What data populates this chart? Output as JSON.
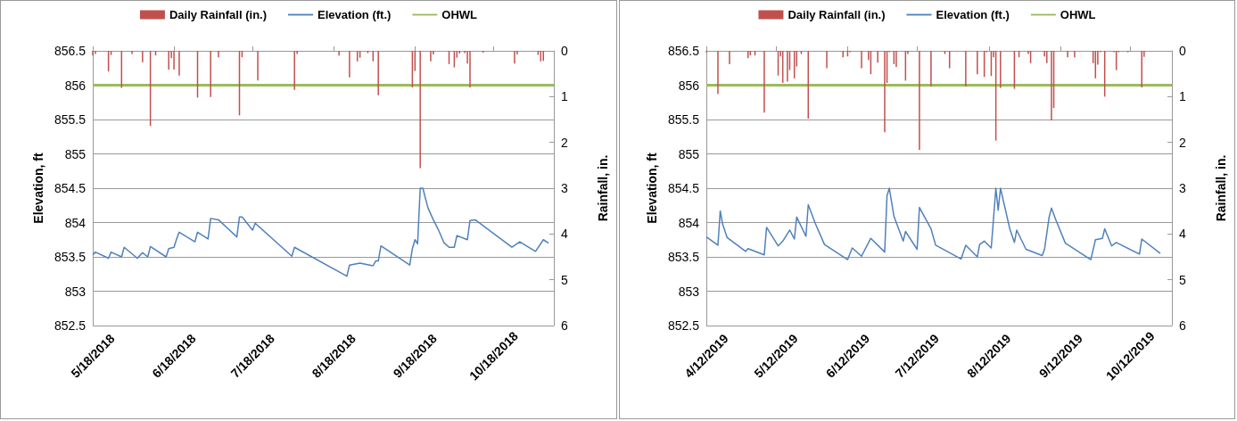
{
  "chart_data": [
    {
      "type": "line",
      "xlabel": null,
      "ylabel": "Elevation, ft",
      "y2label": "Rainfall, in.",
      "legend": "top",
      "grid": "y",
      "marker": "none",
      "xlim": [
        "2018-05-18",
        "2018-11-10"
      ],
      "xticks": [
        {
          "value": "2018-05-18",
          "label": "5/18/2018"
        },
        {
          "value": "2018-06-18",
          "label": "6/18/2018"
        },
        {
          "value": "2018-07-18",
          "label": "7/18/2018"
        },
        {
          "value": "2018-08-18",
          "label": "8/18/2018"
        },
        {
          "value": "2018-09-18",
          "label": "9/18/2018"
        },
        {
          "value": "2018-10-18",
          "label": "10/18/2018"
        }
      ],
      "ylim": [
        852.5,
        856.5
      ],
      "yticks": [
        852.5,
        853,
        853.5,
        854,
        854.5,
        855,
        855.5,
        856,
        856.5
      ],
      "y2lim": [
        6,
        0
      ],
      "y2ticks": [
        0,
        1,
        2,
        3,
        4,
        5,
        6
      ],
      "series": [
        {
          "name": "Daily Rainfall (in.)",
          "type": "bar",
          "axis": "y2",
          "color": "#c0504d",
          "x": [
            "2018-05-18",
            "2018-05-19",
            "2018-05-24",
            "2018-05-25",
            "2018-05-29",
            "2018-06-02",
            "2018-06-06",
            "2018-06-09",
            "2018-06-11",
            "2018-06-16",
            "2018-06-17",
            "2018-06-18",
            "2018-06-20",
            "2018-06-27",
            "2018-07-02",
            "2018-07-05",
            "2018-07-13",
            "2018-07-14",
            "2018-07-20",
            "2018-08-03",
            "2018-08-04",
            "2018-08-20",
            "2018-08-24",
            "2018-08-27",
            "2018-08-28",
            "2018-08-31",
            "2018-09-02",
            "2018-09-04",
            "2018-09-17",
            "2018-09-18",
            "2018-09-20",
            "2018-09-24",
            "2018-09-25",
            "2018-10-01",
            "2018-10-03",
            "2018-10-04",
            "2018-10-05",
            "2018-10-07",
            "2018-10-08",
            "2018-10-09",
            "2018-10-14",
            "2018-10-26",
            "2018-10-27",
            "2018-11-04",
            "2018-11-05",
            "2018-11-06"
          ],
          "values": [
            0.1,
            0.07,
            0.45,
            0.09,
            0.81,
            0.07,
            0.25,
            1.64,
            0.1,
            0.41,
            0.16,
            0.41,
            0.54,
            1.02,
            1.01,
            0.14,
            1.41,
            0.14,
            0.65,
            0.85,
            0.07,
            0.1,
            0.58,
            0.23,
            0.15,
            0.05,
            0.23,
            0.97,
            0.8,
            0.44,
            2.56,
            0.23,
            0.08,
            0.29,
            0.36,
            0.15,
            0.06,
            0.05,
            0.28,
            0.8,
            0.04,
            0.28,
            0.08,
            0.09,
            0.23,
            0.22
          ]
        },
        {
          "name": "Elevation (ft.)",
          "color": "#4f81bd",
          "x": [
            "2018-05-18",
            "2018-05-19",
            "2018-05-24",
            "2018-05-25",
            "2018-05-29",
            "2018-05-30",
            "2018-06-04",
            "2018-06-06",
            "2018-06-08",
            "2018-06-09",
            "2018-06-15",
            "2018-06-16",
            "2018-06-18",
            "2018-06-19",
            "2018-06-20",
            "2018-06-26",
            "2018-06-27",
            "2018-07-01",
            "2018-07-02",
            "2018-07-05",
            "2018-07-12",
            "2018-07-13",
            "2018-07-14",
            "2018-07-18",
            "2018-07-19",
            "2018-08-02",
            "2018-08-03",
            "2018-08-23",
            "2018-08-24",
            "2018-08-28",
            "2018-09-02",
            "2018-09-03",
            "2018-09-04",
            "2018-09-05",
            "2018-09-16",
            "2018-09-17",
            "2018-09-18",
            "2018-09-19",
            "2018-09-20",
            "2018-09-21",
            "2018-09-22",
            "2018-09-23",
            "2018-09-25",
            "2018-09-27",
            "2018-09-29",
            "2018-10-01",
            "2018-10-03",
            "2018-10-04",
            "2018-10-08",
            "2018-10-09",
            "2018-10-11",
            "2018-10-25",
            "2018-10-28",
            "2018-11-03",
            "2018-11-06",
            "2018-11-08"
          ],
          "values": [
            853.53,
            853.57,
            853.48,
            853.57,
            853.5,
            853.64,
            853.48,
            853.56,
            853.5,
            853.65,
            853.5,
            853.62,
            853.64,
            853.76,
            853.86,
            853.72,
            853.86,
            853.76,
            854.06,
            854.04,
            853.79,
            854.08,
            854.08,
            853.89,
            853.99,
            853.51,
            853.64,
            853.22,
            853.38,
            853.41,
            853.37,
            853.44,
            853.44,
            853.66,
            853.38,
            853.62,
            853.75,
            853.69,
            854.5,
            854.5,
            854.35,
            854.21,
            854.04,
            853.89,
            853.71,
            853.64,
            853.64,
            853.81,
            853.75,
            854.03,
            854.04,
            853.64,
            853.72,
            853.58,
            853.75,
            853.7
          ]
        },
        {
          "name": "OHWL",
          "color": "#9bbb59",
          "x": [
            "2018-05-18",
            "2018-11-10"
          ],
          "values": [
            856,
            856
          ]
        }
      ]
    },
    {
      "type": "line",
      "xlabel": null,
      "ylabel": "Elevation, ft",
      "y2label": "Rainfall, in.",
      "legend": "top",
      "grid": "y",
      "marker": "none",
      "xlim": [
        "2019-04-12",
        "2019-10-30"
      ],
      "xticks": [
        {
          "value": "2019-04-12",
          "label": "4/12/2019"
        },
        {
          "value": "2019-05-12",
          "label": "5/12/2019"
        },
        {
          "value": "2019-06-12",
          "label": "6/12/2019"
        },
        {
          "value": "2019-07-12",
          "label": "7/12/2019"
        },
        {
          "value": "2019-08-12",
          "label": "8/12/2019"
        },
        {
          "value": "2019-09-12",
          "label": "9/12/2019"
        },
        {
          "value": "2019-10-12",
          "label": "10/12/2019"
        }
      ],
      "ylim": [
        852.5,
        856.5
      ],
      "yticks": [
        852.5,
        853,
        853.5,
        854,
        854.5,
        855,
        855.5,
        856,
        856.5
      ],
      "y2lim": [
        6,
        0
      ],
      "y2ticks": [
        0,
        1,
        2,
        3,
        4,
        5,
        6
      ],
      "series": [
        {
          "name": "Daily Rainfall (in.)",
          "type": "bar",
          "axis": "y2",
          "color": "#c0504d",
          "x": [
            "2019-04-12",
            "2019-04-17",
            "2019-04-22",
            "2019-04-30",
            "2019-05-01",
            "2019-05-03",
            "2019-05-07",
            "2019-05-13",
            "2019-05-14",
            "2019-05-15",
            "2019-05-17",
            "2019-05-18",
            "2019-05-20",
            "2019-05-21",
            "2019-05-23",
            "2019-05-26",
            "2019-06-03",
            "2019-06-10",
            "2019-06-12",
            "2019-06-13",
            "2019-06-18",
            "2019-06-21",
            "2019-06-22",
            "2019-06-25",
            "2019-06-28",
            "2019-06-29",
            "2019-06-30",
            "2019-07-02",
            "2019-07-03",
            "2019-07-07",
            "2019-07-08",
            "2019-07-13",
            "2019-07-18",
            "2019-07-24",
            "2019-07-26",
            "2019-08-02",
            "2019-08-07",
            "2019-08-10",
            "2019-08-11",
            "2019-08-13",
            "2019-08-14",
            "2019-08-15",
            "2019-08-17",
            "2019-08-23",
            "2019-08-25",
            "2019-08-29",
            "2019-08-30",
            "2019-09-05",
            "2019-09-06",
            "2019-09-08",
            "2019-09-09",
            "2019-09-15",
            "2019-09-18",
            "2019-09-26",
            "2019-09-27",
            "2019-09-28",
            "2019-09-29",
            "2019-10-01",
            "2019-10-05",
            "2019-10-06",
            "2019-10-07",
            "2019-10-11",
            "2019-10-17",
            "2019-10-18"
          ],
          "values": [
            0.03,
            0.94,
            0.29,
            0.16,
            0.1,
            0.1,
            1.35,
            0.54,
            0.12,
            0.7,
            0.67,
            0.42,
            0.6,
            0.34,
            0.07,
            1.48,
            0.38,
            0.14,
            0.12,
            0.03,
            0.38,
            0.2,
            0.51,
            0.26,
            1.78,
            0.7,
            0.03,
            0.29,
            0.35,
            0.65,
            0.07,
            2.16,
            0.78,
            0.07,
            0.38,
            0.78,
            0.51,
            0.57,
            0.03,
            0.55,
            0.14,
            1.96,
            0.81,
            0.83,
            0.14,
            0.07,
            0.27,
            0.12,
            0.27,
            1.52,
            1.25,
            0.14,
            0.14,
            0.27,
            0.6,
            0.3,
            0.03,
            1,
            0.03,
            0.42,
            0.03,
            0.03,
            0.8,
            0.13
          ]
        },
        {
          "name": "Elevation (ft.)",
          "color": "#4f81bd",
          "x": [
            "2019-04-12",
            "2019-04-17",
            "2019-04-18",
            "2019-04-19",
            "2019-04-21",
            "2019-04-29",
            "2019-04-30",
            "2019-05-07",
            "2019-05-08",
            "2019-05-13",
            "2019-05-15",
            "2019-05-18",
            "2019-05-20",
            "2019-05-21",
            "2019-05-25",
            "2019-05-26",
            "2019-05-29",
            "2019-06-02",
            "2019-06-12",
            "2019-06-14",
            "2019-06-18",
            "2019-06-22",
            "2019-06-28",
            "2019-06-29",
            "2019-06-30",
            "2019-07-02",
            "2019-07-06",
            "2019-07-07",
            "2019-07-12",
            "2019-07-13",
            "2019-07-18",
            "2019-07-20",
            "2019-07-31",
            "2019-08-02",
            "2019-08-07",
            "2019-08-08",
            "2019-08-10",
            "2019-08-13",
            "2019-08-15",
            "2019-08-16",
            "2019-08-17",
            "2019-08-21",
            "2019-08-23",
            "2019-08-24",
            "2019-08-28",
            "2019-09-04",
            "2019-09-05",
            "2019-09-07",
            "2019-09-08",
            "2019-09-10",
            "2019-09-14",
            "2019-09-25",
            "2019-09-27",
            "2019-09-30",
            "2019-10-01",
            "2019-10-04",
            "2019-10-06",
            "2019-10-16",
            "2019-10-17",
            "2019-10-25"
          ],
          "values": [
            853.79,
            853.67,
            854.17,
            853.98,
            853.78,
            853.58,
            853.62,
            853.53,
            853.93,
            853.66,
            853.73,
            853.89,
            853.76,
            854.08,
            853.8,
            854.26,
            853.99,
            853.68,
            853.46,
            853.63,
            853.51,
            853.77,
            853.57,
            854.39,
            854.5,
            854.09,
            853.73,
            853.87,
            853.61,
            854.22,
            853.91,
            853.67,
            853.47,
            853.67,
            853.5,
            853.68,
            853.73,
            853.63,
            854.5,
            854.18,
            854.5,
            853.91,
            853.71,
            853.89,
            853.61,
            853.52,
            853.61,
            854.08,
            854.21,
            854.03,
            853.7,
            853.46,
            853.75,
            853.77,
            853.91,
            853.66,
            853.71,
            853.54,
            853.76,
            853.55
          ]
        },
        {
          "name": "OHWL",
          "color": "#9bbb59",
          "x": [
            "2019-04-12",
            "2019-10-30"
          ],
          "values": [
            856,
            856
          ]
        }
      ]
    }
  ]
}
